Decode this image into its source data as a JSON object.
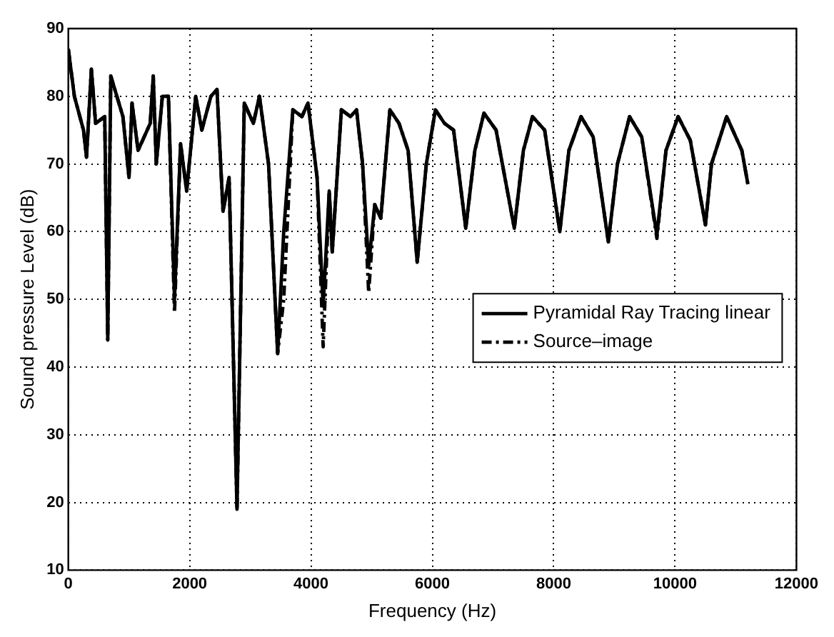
{
  "chart_data": {
    "type": "line",
    "xlabel": "Frequency (Hz)",
    "ylabel": "Sound pressure Level (dB)",
    "xlim": [
      0,
      12000
    ],
    "xticks": [
      0,
      2000,
      4000,
      6000,
      8000,
      10000,
      12000
    ],
    "ylim": [
      10,
      90
    ],
    "yticks": [
      10,
      20,
      30,
      40,
      50,
      60,
      70,
      80,
      90
    ],
    "grid": true,
    "legend": "right",
    "x": [
      0,
      100,
      250,
      300,
      380,
      450,
      600,
      650,
      700,
      900,
      1000,
      1050,
      1150,
      1350,
      1400,
      1450,
      1550,
      1650,
      1750,
      1850,
      1950,
      2100,
      2200,
      2350,
      2450,
      2550,
      2650,
      2780,
      2900,
      3050,
      3150,
      3300,
      3450,
      3550,
      3700,
      3850,
      3950,
      4100,
      4200,
      4300,
      4350,
      4500,
      4650,
      4750,
      4850,
      4950,
      5050,
      5150,
      5300,
      5450,
      5600,
      5750,
      5900,
      6050,
      6200,
      6350,
      6550,
      6700,
      6850,
      7050,
      7350,
      7500,
      7650,
      7850,
      8100,
      8250,
      8450,
      8650,
      8900,
      9050,
      9250,
      9450,
      9700,
      9850,
      10050,
      10250,
      10500,
      10600,
      10850,
      11000,
      11100,
      11200
    ],
    "series": [
      {
        "name": "Pyramidal Ray Tracing linear",
        "color": "#000000",
        "line_style": "solid",
        "values": [
          87,
          80,
          75,
          71,
          84,
          76,
          77,
          44,
          83,
          77,
          68,
          79,
          72,
          76,
          83,
          70,
          80,
          80,
          50,
          73,
          66,
          80,
          75,
          80,
          81,
          63,
          68,
          19,
          79,
          76,
          80,
          70,
          42,
          60,
          78,
          77,
          79,
          68,
          49,
          66,
          57,
          78,
          77,
          78,
          70,
          55,
          64,
          62,
          78,
          76,
          72,
          55.5,
          70,
          78,
          76,
          75,
          60.5,
          72,
          77.5,
          75,
          60.5,
          72,
          77,
          75,
          60,
          72,
          77,
          74,
          58.5,
          70,
          77,
          74,
          59.5,
          72,
          77,
          73.5,
          61,
          70,
          77,
          74,
          72,
          67
        ]
      },
      {
        "name": "Source–image",
        "color": "#000000",
        "line_style": "dashdot",
        "values": [
          87,
          80,
          75,
          71,
          84,
          76,
          77,
          44,
          83,
          77,
          68,
          79,
          72,
          76,
          83,
          70,
          80,
          80,
          48,
          73,
          66,
          80,
          75,
          80,
          81,
          63,
          68,
          19,
          79,
          76,
          80,
          70,
          42,
          50,
          78,
          77,
          79,
          68,
          43,
          66,
          57,
          78,
          77,
          78,
          70,
          51,
          64,
          62,
          78,
          76,
          72,
          55.5,
          70,
          78,
          76,
          75,
          60.5,
          72,
          77.5,
          75,
          60.5,
          72,
          77,
          75,
          60,
          72,
          77,
          74,
          58.5,
          70,
          77,
          74,
          59,
          72,
          77,
          73.5,
          61,
          70,
          77,
          74,
          72,
          67
        ]
      }
    ]
  }
}
